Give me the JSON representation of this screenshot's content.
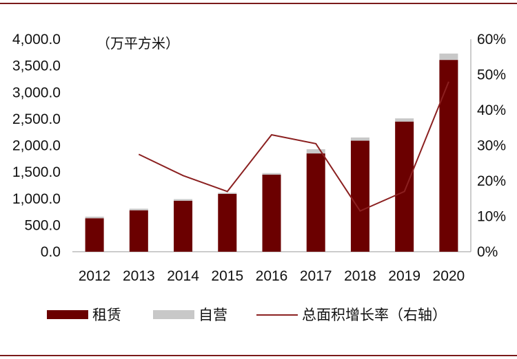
{
  "chart_data": {
    "type": "bar",
    "unit_label": "（万平方米）",
    "categories": [
      "2012",
      "2013",
      "2014",
      "2015",
      "2016",
      "2017",
      "2018",
      "2019",
      "2020"
    ],
    "series": [
      {
        "name": "租赁",
        "kind": "stacked-bar",
        "color": "#6b0000",
        "values": [
          630,
          780,
          960,
          1090,
          1450,
          1850,
          2090,
          2450,
          3610
        ]
      },
      {
        "name": "自营",
        "kind": "stacked-bar",
        "color": "#c8c8c8",
        "values": [
          30,
          30,
          30,
          20,
          30,
          80,
          60,
          60,
          120
        ]
      },
      {
        "name": "总面积增长率（右轴）",
        "kind": "line",
        "axis": "right",
        "color": "#8b2020",
        "values": [
          null,
          27.5,
          21.5,
          17.0,
          33.0,
          30.5,
          11.5,
          17.0,
          48.0
        ]
      }
    ],
    "y_left": {
      "ylim": [
        0,
        4000
      ],
      "ticks": [
        0,
        500,
        1000,
        1500,
        2000,
        2500,
        3000,
        3500,
        4000
      ],
      "tick_labels": [
        "0.0",
        "500.0",
        "1,000.0",
        "1,500.0",
        "2,000.0",
        "2,500.0",
        "3,000.0",
        "3,500.0",
        "4,000.0"
      ]
    },
    "y_right": {
      "ylim": [
        0,
        60
      ],
      "ticks": [
        0,
        10,
        20,
        30,
        40,
        50,
        60
      ],
      "tick_labels": [
        "0%",
        "10%",
        "20%",
        "30%",
        "40%",
        "50%",
        "60%"
      ]
    },
    "grid": false,
    "legend_position": "bottom"
  }
}
